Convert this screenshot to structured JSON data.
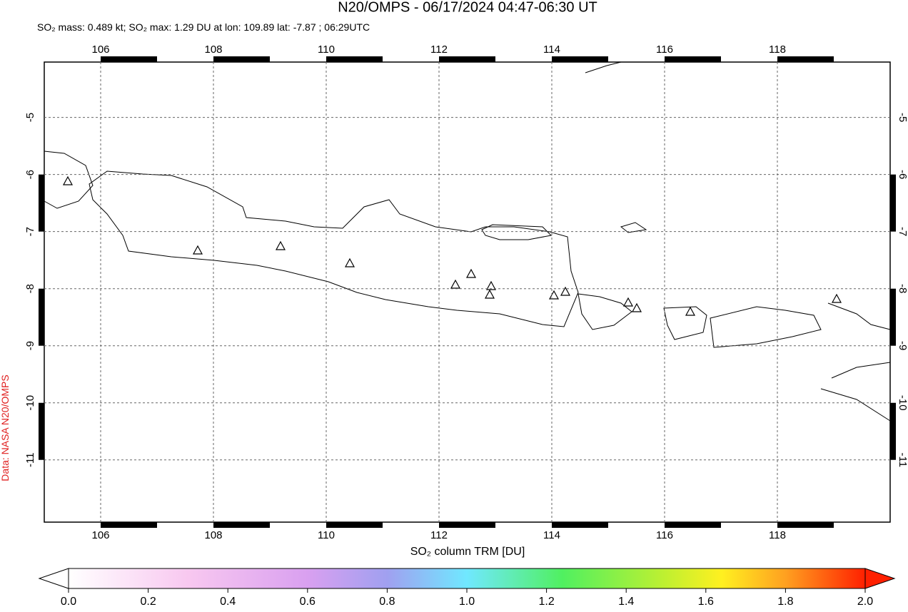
{
  "title": "N20/OMPS - 06/17/2024 04:47-06:30 UT",
  "subtitle": "SO₂ mass: 0.489 kt; SO₂ max: 1.29 DU at lon: 109.89 lat: -7.87 ; 06:29UTC",
  "credit": "Data: NASA N20/OMPS",
  "map": {
    "lon_range": [
      105,
      120
    ],
    "lat_range": [
      -12.09,
      -4.03
    ],
    "lon_ticks": [
      106,
      108,
      110,
      112,
      114,
      116,
      118
    ],
    "lat_ticks": [
      -5,
      -6,
      -7,
      -8,
      -9,
      -10,
      -11
    ]
  },
  "colorbar": {
    "label": "SO₂ column TRM [DU]",
    "range": [
      0,
      2
    ],
    "ticks": [
      {
        "value": 0,
        "label": "0.0"
      },
      {
        "value": 0.2,
        "label": "0.2"
      },
      {
        "value": 0.4,
        "label": "0.4"
      },
      {
        "value": 0.6,
        "label": "0.6"
      },
      {
        "value": 0.8,
        "label": "0.8"
      },
      {
        "value": 1,
        "label": "1.0"
      },
      {
        "value": 1.2,
        "label": "1.2"
      },
      {
        "value": 1.4,
        "label": "1.4"
      },
      {
        "value": 1.6,
        "label": "1.6"
      },
      {
        "value": 1.8,
        "label": "1.8"
      },
      {
        "value": 2,
        "label": "2.0"
      }
    ]
  }
}
